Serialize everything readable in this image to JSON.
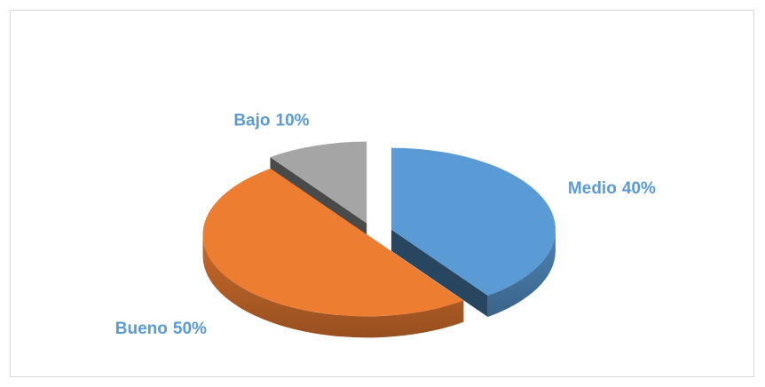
{
  "chart_data": {
    "type": "pie",
    "categories": [
      "Medio",
      "Bueno",
      "Bajo"
    ],
    "values": [
      40,
      50,
      10
    ],
    "value_labels": [
      "40%",
      "50%",
      "10%"
    ],
    "colors": [
      "#5b9bd5",
      "#ed7d31",
      "#a5a5a5"
    ]
  }
}
